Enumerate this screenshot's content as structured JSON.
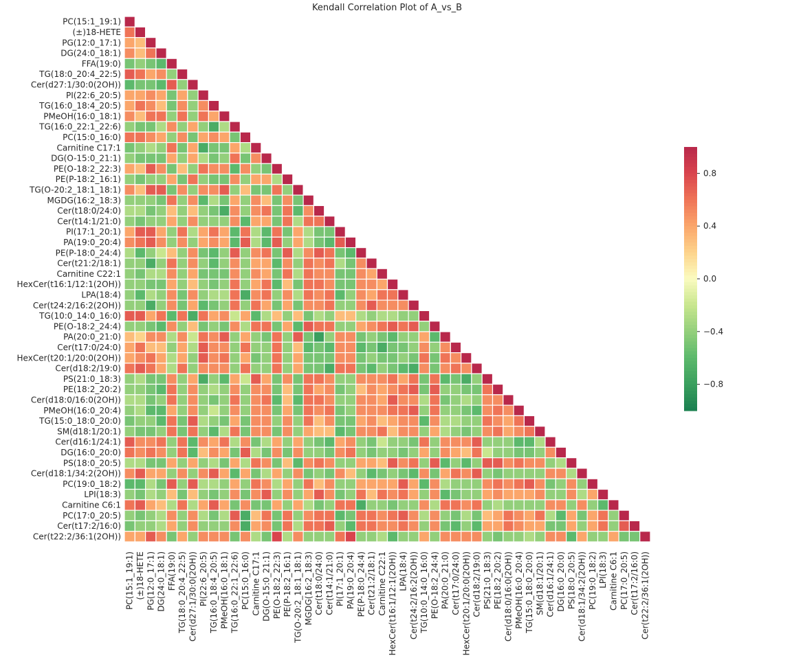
{
  "chart_data": {
    "type": "heatmap",
    "title": "Kendall Correlation Plot of A_vs_B",
    "mask": "upper-triangle",
    "labels": [
      "PC(15:1_19:1)",
      "(±)18-HETE",
      "PG(12:0_17:1)",
      "DG(24:0_18:1)",
      "FFA(19:0)",
      "TG(18:0_20:4_22:5)",
      "Cer(d27:1/30:0(2OH))",
      "PI(22:6_20:5)",
      "TG(16:0_18:4_20:5)",
      "PMeOH(16:0_18:1)",
      "TG(16:0_22:1_22:6)",
      "PC(15:0_16:0)",
      "Carnitine C17:1",
      "DG(O-15:0_21:1)",
      "PE(O-18:2_22:3)",
      "PE(P-18:2_16:1)",
      "TG(O-20:2_18:1_18:1)",
      "MGDG(16:2_18:3)",
      "Cer(t18:0/24:0)",
      "Cer(t14:1/21:0)",
      "PI(17:1_20:1)",
      "PA(19:0_20:4)",
      "PE(P-18:0_24:4)",
      "Cer(t21:2/18:1)",
      "Carnitine C22:1",
      "HexCer(t16:1/12:1(2OH))",
      "LPA(18:4)",
      "Cer(t24:2/16:2(2OH))",
      "TG(10:0_14:0_16:0)",
      "PE(O-18:2_24:4)",
      "PA(20:0_21:0)",
      "Cer(t17:0/24:0)",
      "HexCer(t20:1/20:0(2OH))",
      "Cer(d18:2/19:0)",
      "PS(21:0_18:3)",
      "PE(18:2_20:2)",
      "Cer(d18:0/16:0(2OH))",
      "PMeOH(16:0_20:4)",
      "TG(15:0_18:0_20:0)",
      "SM(d18:1/20:1)",
      "Cer(d16:1/24:1)",
      "DG(16:0_20:0)",
      "PS(18:0_20:5)",
      "Cer(d18:1/34:2(2OH))",
      "PC(19:0_18:2)",
      "LPI(18:3)",
      "Carnitine C6:1",
      "PC(17:0_20:5)",
      "Cer(t17:2/16:0)",
      "Cer(t22:2/36:1(2OH))"
    ],
    "values_lower_triangle": [
      [
        1
      ],
      [
        0.6,
        1
      ],
      [
        0.4,
        0.3,
        1
      ],
      [
        0.5,
        0.3,
        0.6,
        1
      ],
      [
        -0.5,
        -0.4,
        -0.5,
        -0.6,
        1
      ],
      [
        0.7,
        0.6,
        0.4,
        0.5,
        -0.4,
        1
      ],
      [
        -0.6,
        -0.5,
        -0.5,
        -0.6,
        0.7,
        -0.4,
        1
      ],
      [
        0.4,
        0.4,
        0.5,
        0.4,
        -0.5,
        0.4,
        -0.4,
        1
      ],
      [
        0.4,
        0.6,
        0.5,
        0.3,
        -0.5,
        0.5,
        -0.4,
        0.5,
        1
      ],
      [
        0.5,
        0.3,
        0.6,
        0.6,
        -0.4,
        0.6,
        -0.4,
        0.6,
        0.4,
        1
      ],
      [
        -0.4,
        -0.5,
        -0.5,
        -0.3,
        0.5,
        -0.4,
        0.4,
        -0.4,
        -0.7,
        -0.3,
        1
      ],
      [
        0.6,
        0.6,
        0.5,
        0.4,
        -0.4,
        0.5,
        -0.5,
        0.4,
        0.5,
        0.4,
        -0.5,
        1
      ],
      [
        -0.5,
        -0.4,
        -0.3,
        -0.4,
        0.6,
        -0.5,
        0.4,
        -0.7,
        -0.5,
        -0.5,
        0.4,
        -0.3,
        1
      ],
      [
        -0.4,
        -0.5,
        -0.5,
        -0.5,
        0.4,
        -0.4,
        0.4,
        -0.3,
        -0.5,
        -0.4,
        0.6,
        -0.5,
        0.5,
        1
      ],
      [
        0.4,
        0.3,
        0.7,
        0.5,
        -0.5,
        0.3,
        -0.4,
        0.6,
        0.5,
        0.5,
        -0.6,
        0.5,
        -0.4,
        -0.5,
        1
      ],
      [
        -0.4,
        -0.5,
        -0.4,
        -0.4,
        0.4,
        -0.5,
        0.6,
        -0.4,
        -0.5,
        -0.5,
        0.5,
        -0.4,
        0.4,
        0.4,
        -0.3,
        1
      ],
      [
        0.5,
        0.3,
        0.7,
        0.7,
        -0.5,
        0.5,
        -0.4,
        0.5,
        0.5,
        0.7,
        -0.4,
        0.3,
        -0.5,
        -0.5,
        0.6,
        -0.4,
        1
      ],
      [
        -0.4,
        -0.4,
        -0.4,
        -0.5,
        0.6,
        -0.4,
        0.5,
        -0.6,
        -0.3,
        -0.5,
        0.4,
        -0.4,
        0.5,
        0.3,
        -0.5,
        0.5,
        -0.5,
        1
      ],
      [
        -0.3,
        -0.3,
        -0.5,
        -0.4,
        0.3,
        -0.4,
        0.3,
        -0.4,
        -0.5,
        -0.7,
        0.5,
        -0.4,
        0.5,
        0.6,
        -0.5,
        0.6,
        -0.6,
        0.5,
        1
      ],
      [
        -0.4,
        -0.5,
        -0.4,
        -0.4,
        0.4,
        -0.4,
        0.5,
        -0.4,
        -0.4,
        -0.4,
        0.5,
        -0.6,
        0.4,
        0.4,
        -0.5,
        0.6,
        -0.3,
        0.6,
        0.6,
        1
      ],
      [
        0.4,
        0.7,
        0.7,
        0.4,
        -0.4,
        0.6,
        -0.3,
        0.4,
        0.6,
        0.4,
        -0.6,
        0.6,
        -0.3,
        -0.6,
        0.6,
        -0.5,
        0.4,
        -0.3,
        -0.5,
        -0.5,
        1
      ],
      [
        0.5,
        0.6,
        0.7,
        0.5,
        -0.4,
        0.5,
        -0.4,
        0.4,
        0.5,
        0.4,
        -0.6,
        0.7,
        -0.3,
        -0.6,
        0.7,
        -0.4,
        0.4,
        -0.3,
        -0.5,
        -0.6,
        0.7,
        1
      ],
      [
        -0.3,
        -0.6,
        -0.4,
        -0.2,
        0.3,
        -0.4,
        0.5,
        -0.5,
        -0.6,
        -0.4,
        0.7,
        -0.4,
        0.5,
        0.6,
        -0.5,
        0.7,
        -0.3,
        0.5,
        0.7,
        0.6,
        -0.5,
        -0.6,
        1
      ],
      [
        -0.4,
        -0.4,
        -0.7,
        -0.4,
        0.6,
        -0.4,
        0.5,
        -0.4,
        -0.6,
        -0.4,
        0.5,
        -0.4,
        0.4,
        0.4,
        -0.6,
        0.5,
        -0.4,
        0.6,
        0.5,
        0.6,
        -0.3,
        -0.5,
        0.5,
        1
      ],
      [
        -0.4,
        -0.5,
        -0.3,
        -0.3,
        0.5,
        -0.4,
        0.4,
        -0.5,
        -0.5,
        -0.5,
        0.5,
        -0.4,
        0.5,
        0.4,
        -0.5,
        0.6,
        -0.3,
        0.6,
        0.5,
        0.5,
        -0.5,
        -0.5,
        0.5,
        0.4,
        1
      ],
      [
        -0.4,
        -0.4,
        -0.5,
        -0.5,
        0.4,
        -0.4,
        0.3,
        -0.4,
        -0.5,
        -0.4,
        0.6,
        -0.4,
        0.4,
        0.6,
        -0.6,
        0.3,
        -0.5,
        0.6,
        0.6,
        0.5,
        -0.5,
        -0.5,
        0.5,
        0.5,
        0.4,
        1
      ],
      [
        -0.4,
        -0.6,
        -0.3,
        -0.4,
        0.5,
        -0.5,
        0.5,
        -0.4,
        -0.3,
        -0.3,
        0.6,
        -0.7,
        0.5,
        0.6,
        -0.4,
        0.5,
        -0.3,
        0.6,
        0.5,
        0.6,
        -0.6,
        -0.4,
        0.5,
        0.4,
        0.6,
        0.6,
        1
      ],
      [
        -0.4,
        -0.4,
        -0.7,
        -0.4,
        0.5,
        -0.5,
        0.4,
        -0.6,
        -0.5,
        -0.4,
        0.6,
        -0.4,
        0.6,
        0.4,
        -0.5,
        0.4,
        -0.5,
        0.5,
        0.5,
        0.6,
        -0.4,
        -0.4,
        0.5,
        0.7,
        0.5,
        0.5,
        0.5,
        1
      ],
      [
        0.7,
        0.7,
        0.4,
        0.6,
        -0.6,
        0.6,
        -0.7,
        0.6,
        0.4,
        0.5,
        -0.2,
        0.4,
        -0.6,
        -0.3,
        0.3,
        -0.4,
        0.3,
        -0.5,
        -0.3,
        -0.4,
        0.3,
        0.3,
        -0.3,
        -0.4,
        -0.3,
        -0.3,
        -0.4,
        -0.4,
        1
      ],
      [
        -0.4,
        -0.4,
        -0.5,
        -0.6,
        0.5,
        -0.4,
        0.3,
        -0.5,
        -0.4,
        -0.5,
        0.5,
        -0.3,
        0.6,
        0.6,
        -0.5,
        0.4,
        -0.6,
        0.7,
        0.6,
        0.6,
        -0.4,
        -0.4,
        0.4,
        0.5,
        0.6,
        0.7,
        0.6,
        0.7,
        -0.4,
        1
      ],
      [
        0.3,
        0.2,
        0.5,
        0.5,
        -0.3,
        0.5,
        -0.2,
        0.6,
        0.5,
        0.7,
        -0.4,
        0.4,
        -0.4,
        -0.5,
        0.6,
        -0.4,
        0.7,
        -0.5,
        -0.8,
        -0.4,
        0.5,
        0.5,
        -0.5,
        -0.4,
        -0.5,
        -0.6,
        -0.4,
        -0.4,
        0.4,
        -0.6,
        1
      ],
      [
        0.4,
        0.6,
        0.3,
        0.3,
        -0.4,
        0.4,
        -0.3,
        0.7,
        0.5,
        0.5,
        -0.4,
        0.6,
        -0.4,
        -0.4,
        0.6,
        -0.4,
        0.3,
        -0.6,
        -0.5,
        -0.6,
        0.5,
        0.5,
        -0.6,
        -0.5,
        -0.7,
        -0.5,
        -0.5,
        -0.4,
        0.5,
        -0.4,
        0.5,
        1
      ],
      [
        0.4,
        0.5,
        0.6,
        0.4,
        -0.3,
        0.4,
        -0.4,
        0.7,
        0.5,
        0.6,
        -0.4,
        0.4,
        -0.5,
        -0.4,
        0.6,
        -0.4,
        0.4,
        -0.5,
        -0.5,
        -0.5,
        0.5,
        0.5,
        -0.5,
        -0.4,
        -0.5,
        -0.5,
        -0.4,
        -0.5,
        0.6,
        -0.5,
        0.6,
        0.5,
        1
      ],
      [
        0.6,
        0.7,
        0.6,
        0.4,
        -0.3,
        0.6,
        -0.4,
        0.5,
        0.5,
        0.5,
        -0.4,
        0.6,
        -0.4,
        -0.4,
        0.6,
        -0.4,
        0.4,
        -0.5,
        -0.5,
        -0.7,
        0.6,
        0.6,
        -0.5,
        -0.6,
        -0.4,
        -0.5,
        -0.6,
        -0.7,
        0.5,
        -0.5,
        0.5,
        0.6,
        0.5,
        1
      ],
      [
        -0.4,
        -0.3,
        -0.5,
        -0.5,
        0.5,
        -0.4,
        0.4,
        -0.7,
        -0.4,
        -0.6,
        0.4,
        -0.2,
        0.7,
        0.4,
        -0.5,
        0.5,
        -0.5,
        0.6,
        0.6,
        0.5,
        -0.4,
        -0.4,
        0.5,
        0.5,
        0.5,
        0.6,
        0.4,
        0.6,
        -0.5,
        0.6,
        -0.6,
        -0.5,
        -0.7,
        -0.4,
        1
      ],
      [
        -0.4,
        -0.4,
        -0.5,
        -0.6,
        0.6,
        -0.4,
        0.5,
        -0.4,
        -0.3,
        -0.4,
        0.5,
        -0.4,
        0.5,
        0.5,
        -0.5,
        0.3,
        -0.5,
        0.6,
        0.4,
        0.5,
        -0.5,
        -0.4,
        0.3,
        0.5,
        0.4,
        0.5,
        0.6,
        0.7,
        -0.5,
        0.7,
        -0.4,
        -0.4,
        -0.5,
        -0.5,
        0.6,
        1
      ],
      [
        -0.3,
        -0.3,
        -0.5,
        -0.4,
        0.6,
        -0.4,
        0.5,
        -0.4,
        -0.5,
        -0.4,
        0.6,
        -0.4,
        0.5,
        0.6,
        -0.6,
        0.3,
        -0.6,
        0.6,
        0.6,
        0.5,
        -0.4,
        -0.4,
        0.5,
        0.5,
        0.4,
        0.7,
        0.5,
        0.5,
        -0.3,
        0.6,
        -0.5,
        -0.4,
        -0.3,
        -0.4,
        0.5,
        0.5,
        1
      ],
      [
        -0.4,
        -0.3,
        -0.6,
        -0.6,
        0.4,
        -0.4,
        0.5,
        -0.4,
        -0.2,
        -0.4,
        0.5,
        -0.4,
        0.5,
        0.5,
        -0.5,
        0.4,
        -0.5,
        0.6,
        0.5,
        0.6,
        -0.5,
        -0.4,
        0.5,
        0.5,
        0.5,
        0.6,
        0.6,
        0.7,
        -0.4,
        0.6,
        -0.4,
        -0.4,
        -0.5,
        -0.6,
        0.5,
        0.6,
        0.5,
        1
      ],
      [
        -0.5,
        -0.4,
        -0.4,
        -0.6,
        0.6,
        -0.5,
        0.7,
        -0.3,
        -0.4,
        -0.5,
        0.4,
        -0.5,
        0.5,
        0.5,
        -0.4,
        0.5,
        -0.4,
        0.6,
        0.3,
        0.5,
        -0.5,
        -0.5,
        0.4,
        0.5,
        0.3,
        0.4,
        0.5,
        0.5,
        -0.6,
        0.5,
        -0.3,
        -0.3,
        -0.4,
        -0.4,
        0.6,
        0.5,
        0.4,
        0.6,
        1
      ],
      [
        -0.4,
        -0.5,
        -0.5,
        -0.4,
        0.6,
        -0.5,
        0.6,
        -0.4,
        -0.6,
        -0.3,
        0.6,
        -0.5,
        0.5,
        0.5,
        -0.5,
        0.5,
        -0.4,
        0.4,
        0.3,
        0.3,
        -0.6,
        -0.5,
        0.5,
        0.5,
        0.6,
        0.3,
        0.5,
        0.5,
        -0.4,
        0.4,
        -0.3,
        -0.4,
        -0.5,
        -0.4,
        0.5,
        0.6,
        0.4,
        0.5,
        0.6,
        1
      ],
      [
        0.7,
        0.5,
        0.5,
        0.6,
        -0.4,
        0.6,
        -0.6,
        0.5,
        0.4,
        0.6,
        -0.3,
        0.5,
        -0.5,
        -0.3,
        0.4,
        -0.4,
        0.4,
        -0.4,
        -0.5,
        -0.6,
        0.4,
        0.5,
        -0.4,
        -0.5,
        -0.2,
        -0.4,
        -0.4,
        -0.5,
        0.6,
        -0.4,
        0.5,
        0.5,
        0.5,
        0.7,
        -0.4,
        -0.4,
        -0.4,
        -0.6,
        -0.6,
        -0.3,
        1
      ],
      [
        0.6,
        0.5,
        0.6,
        0.5,
        -0.4,
        0.6,
        -0.6,
        0.3,
        0.5,
        0.4,
        -0.5,
        0.7,
        -0.3,
        -0.5,
        0.5,
        -0.5,
        0.5,
        -0.4,
        -0.4,
        -0.5,
        0.5,
        0.6,
        -0.4,
        -0.5,
        -0.4,
        -0.4,
        -0.5,
        -0.4,
        0.4,
        -0.4,
        0.5,
        0.4,
        0.3,
        0.6,
        -0.2,
        -0.4,
        -0.4,
        -0.5,
        -0.5,
        -0.4,
        0.5,
        1
      ],
      [
        -0.3,
        -0.3,
        -0.5,
        -0.5,
        0.4,
        -0.4,
        0.4,
        -0.4,
        -0.3,
        -0.5,
        0.4,
        -0.3,
        0.6,
        0.5,
        -0.5,
        0.3,
        -0.6,
        0.5,
        0.6,
        0.5,
        -0.4,
        -0.4,
        0.4,
        0.4,
        0.3,
        0.7,
        0.5,
        0.6,
        -0.4,
        0.7,
        -0.6,
        -0.4,
        -0.6,
        -0.4,
        0.7,
        0.7,
        0.5,
        0.6,
        0.5,
        0.5,
        -0.4,
        -0.3,
        1
      ],
      [
        0.5,
        0.7,
        0.4,
        0.4,
        -0.4,
        0.5,
        -0.4,
        0.5,
        0.7,
        0.4,
        -0.6,
        0.4,
        -0.5,
        -0.3,
        0.4,
        -0.4,
        0.5,
        -0.5,
        -0.4,
        -0.5,
        0.5,
        0.3,
        -0.4,
        -0.6,
        -0.5,
        -0.4,
        -0.5,
        -0.6,
        0.5,
        -0.5,
        0.4,
        0.6,
        0.5,
        0.7,
        -0.4,
        -0.5,
        -0.4,
        -0.4,
        -0.4,
        -0.4,
        0.5,
        0.5,
        -0.3,
        1
      ],
      [
        -0.6,
        -0.6,
        -0.3,
        -0.5,
        0.7,
        -0.4,
        0.7,
        -0.3,
        -0.3,
        -0.4,
        0.4,
        -0.4,
        0.6,
        0.5,
        -0.3,
        0.4,
        -0.4,
        0.6,
        0.3,
        0.5,
        -0.4,
        -0.4,
        0.4,
        0.4,
        0.4,
        0.4,
        0.7,
        0.4,
        -0.6,
        0.5,
        -0.3,
        -0.4,
        -0.4,
        -0.4,
        0.5,
        0.6,
        0.5,
        0.6,
        0.7,
        0.5,
        -0.5,
        -0.4,
        0.5,
        -0.4,
        1
      ],
      [
        -0.4,
        -0.5,
        -0.3,
        -0.4,
        0.3,
        -0.5,
        0.3,
        -0.4,
        -0.5,
        -0.4,
        0.5,
        -0.5,
        0.5,
        0.7,
        -0.4,
        0.5,
        -0.4,
        0.4,
        0.7,
        0.5,
        -0.5,
        -0.4,
        0.6,
        0.3,
        0.6,
        0.5,
        0.6,
        0.4,
        -0.4,
        0.5,
        -0.6,
        -0.5,
        -0.4,
        -0.4,
        0.4,
        0.5,
        0.4,
        0.4,
        0.4,
        0.5,
        -0.4,
        -0.4,
        0.5,
        -0.3,
        0.4,
        1
      ],
      [
        0.6,
        0.7,
        0.4,
        0.3,
        -0.3,
        0.6,
        -0.3,
        0.4,
        0.7,
        0.4,
        -0.5,
        0.5,
        -0.5,
        -0.5,
        0.4,
        -0.4,
        0.4,
        -0.3,
        -0.5,
        -0.4,
        0.6,
        0.6,
        -0.7,
        -0.4,
        -0.4,
        -0.5,
        -0.4,
        -0.4,
        0.5,
        -0.3,
        0.6,
        0.6,
        0.5,
        0.6,
        -0.4,
        -0.3,
        -0.4,
        -0.4,
        -0.4,
        -0.4,
        0.5,
        0.5,
        -0.4,
        0.5,
        -0.4,
        -0.6,
        1
      ],
      [
        -0.4,
        -0.5,
        -0.4,
        -0.3,
        0.5,
        -0.4,
        0.5,
        -0.3,
        -0.5,
        -0.3,
        0.7,
        -0.7,
        0.3,
        0.6,
        -0.5,
        0.6,
        -0.4,
        0.5,
        0.6,
        0.6,
        -0.6,
        -0.5,
        0.6,
        0.6,
        0.5,
        0.6,
        0.7,
        0.5,
        -0.3,
        0.5,
        -0.4,
        -0.5,
        -0.3,
        -0.5,
        0.3,
        0.4,
        0.6,
        0.5,
        0.4,
        0.6,
        -0.3,
        -0.6,
        0.4,
        -0.5,
        0.4,
        0.6,
        -0.4,
        1
      ],
      [
        -0.5,
        -0.4,
        -0.4,
        -0.3,
        0.4,
        -0.4,
        0.5,
        -0.4,
        -0.4,
        -0.4,
        0.5,
        -0.7,
        0.4,
        0.5,
        -0.5,
        0.6,
        -0.3,
        0.6,
        0.6,
        0.7,
        -0.4,
        -0.6,
        0.6,
        0.6,
        0.5,
        0.5,
        0.6,
        0.5,
        -0.4,
        0.5,
        -0.5,
        -0.6,
        -0.4,
        -0.6,
        0.4,
        0.4,
        0.6,
        0.5,
        0.4,
        0.4,
        -0.5,
        -0.5,
        0.4,
        -0.4,
        0.4,
        0.6,
        -0.4,
        0.7,
        1
      ],
      [
        0.4,
        0.4,
        0.7,
        0.5,
        -0.5,
        0.4,
        -0.4,
        0.5,
        0.5,
        0.5,
        -0.5,
        0.5,
        -0.3,
        -0.5,
        0.8,
        -0.3,
        0.5,
        -0.4,
        -0.4,
        -0.4,
        0.6,
        0.8,
        -0.4,
        -0.4,
        -0.3,
        -0.6,
        -0.4,
        -0.4,
        0.4,
        -0.4,
        0.5,
        0.5,
        0.5,
        0.5,
        -0.4,
        -0.5,
        -0.4,
        -0.4,
        -0.3,
        -0.4,
        0.5,
        0.5,
        -0.6,
        0.4,
        -0.4,
        -0.4,
        0.4,
        -0.5,
        -0.5,
        1
      ]
    ],
    "colorbar": {
      "range": [
        -1,
        1
      ],
      "ticks": [
        0.8,
        0.4,
        0.0,
        -0.4,
        -0.8
      ],
      "tick_labels": [
        "0.8",
        "0.4",
        "0.0",
        "−0.4",
        "−0.8"
      ],
      "colormap": "RdYlGn_r",
      "placement": "right"
    }
  }
}
